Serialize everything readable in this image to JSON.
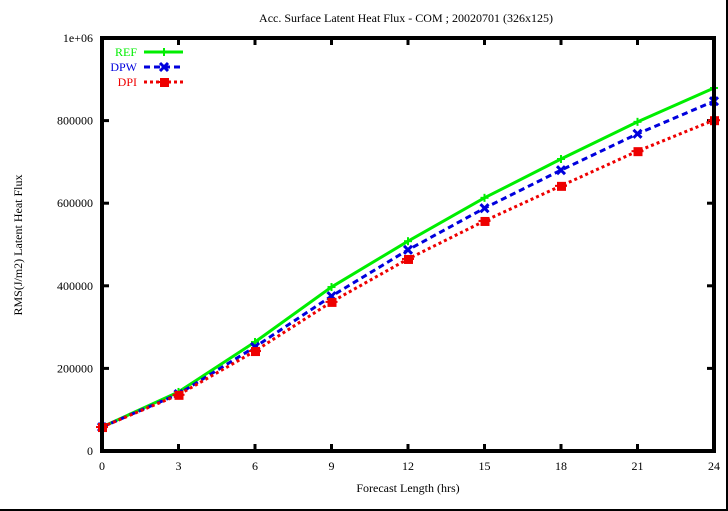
{
  "chart_data": {
    "type": "line",
    "title": "Acc. Surface Latent Heat Flux - COM ; 20020701 (326x125)",
    "xlabel": "Forecast Length (hrs)",
    "ylabel": "RMS(J/m2) Latent Heat Flux",
    "x": [
      0,
      3,
      6,
      9,
      12,
      15,
      18,
      21,
      24
    ],
    "xticks": [
      "0",
      "3",
      "6",
      "9",
      "12",
      "15",
      "18",
      "21",
      "24"
    ],
    "yticks": [
      "0",
      "200000",
      "400000",
      "600000",
      "800000",
      "1e+06"
    ],
    "xlim": [
      0,
      24
    ],
    "ylim": [
      0,
      1000000
    ],
    "grid": false,
    "legend_position": "top-left",
    "series": [
      {
        "name": "REF",
        "color": "#00ee00",
        "style": "solid",
        "marker": "plus",
        "values": [
          58000,
          143000,
          264000,
          397000,
          508000,
          613000,
          707000,
          797000,
          879000
        ]
      },
      {
        "name": "DPW",
        "color": "#0000dd",
        "style": "dashed",
        "marker": "x",
        "values": [
          58000,
          138000,
          252000,
          375000,
          487000,
          588000,
          680000,
          768000,
          847000
        ]
      },
      {
        "name": "DPI",
        "color": "#ee0000",
        "style": "dotted",
        "marker": "asterisk",
        "values": [
          58000,
          136000,
          242000,
          361000,
          465000,
          557000,
          642000,
          726000,
          801000
        ]
      }
    ]
  }
}
